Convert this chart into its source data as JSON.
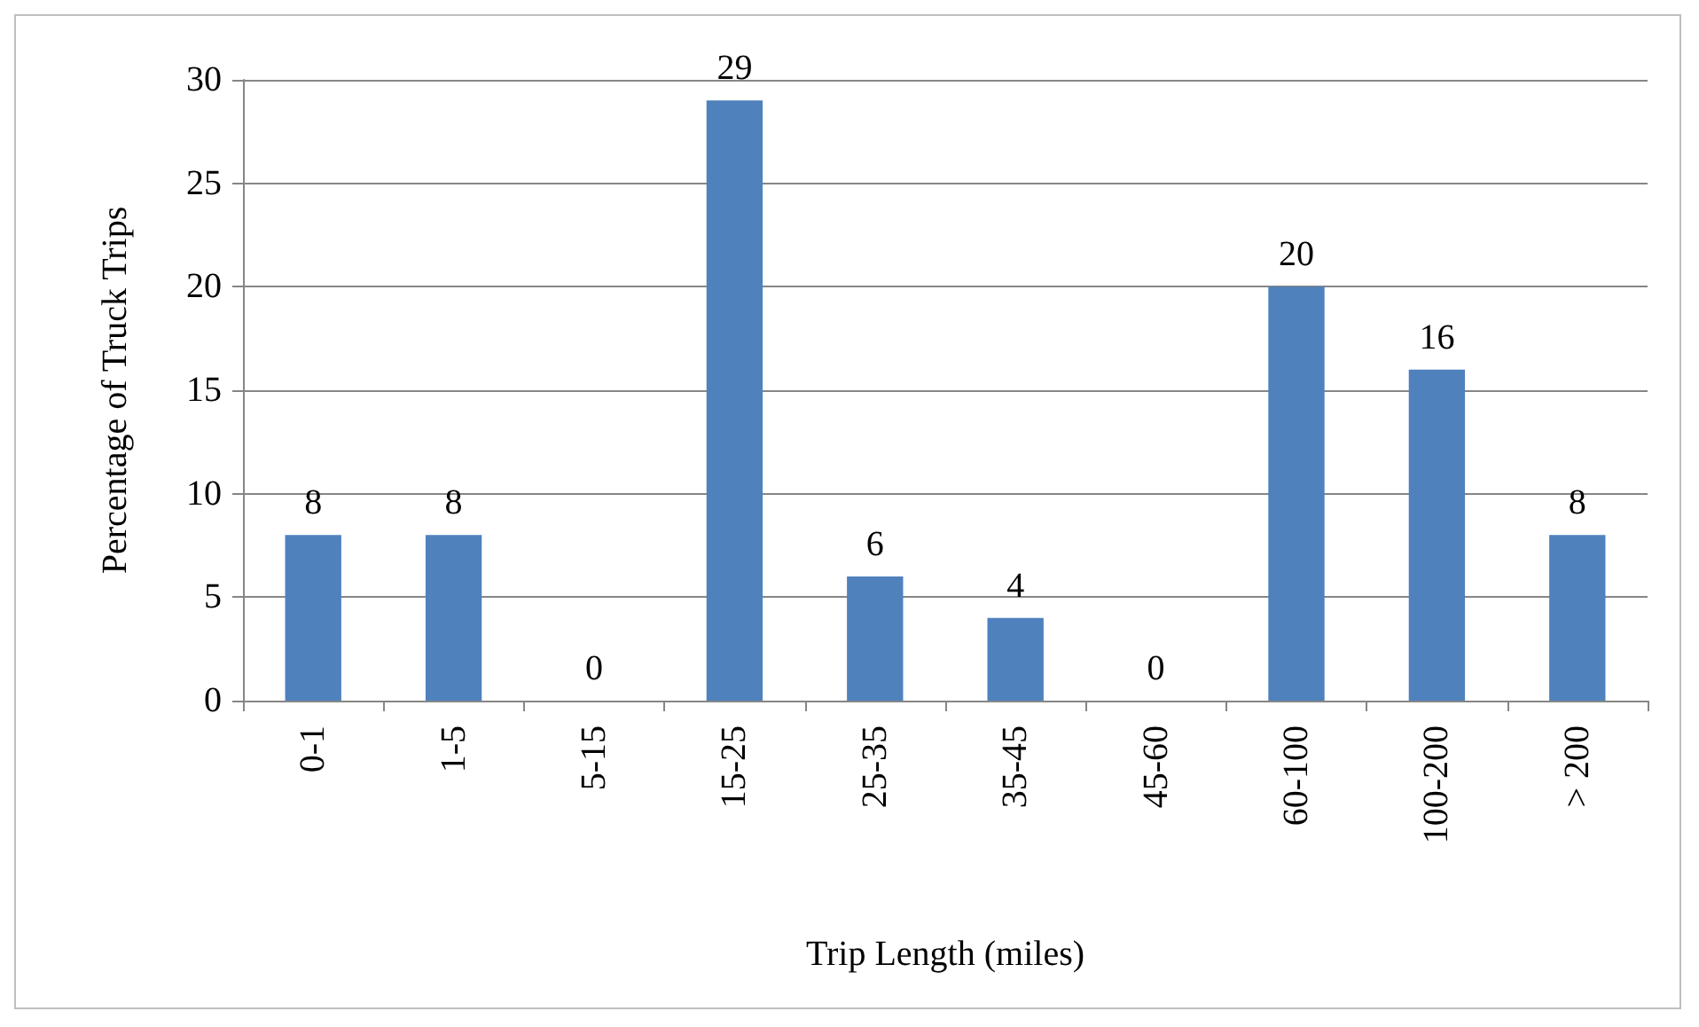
{
  "chart_data": {
    "type": "bar",
    "xlabel": "Trip Length (miles)",
    "ylabel": "Percentage of Truck Trips",
    "categories": [
      "0-1",
      "1-5",
      "5-15",
      "15-25",
      "25-35",
      "35-45",
      "45-60",
      "60-100",
      "100-200",
      "> 200"
    ],
    "values": [
      8,
      8,
      0,
      29,
      6,
      4,
      0,
      20,
      16,
      8
    ],
    "color": "#4f81bd",
    "ylim": [
      0,
      30
    ],
    "yticks": [
      0,
      5,
      10,
      15,
      20,
      25,
      30
    ],
    "grid": "y",
    "data_labels": true
  }
}
